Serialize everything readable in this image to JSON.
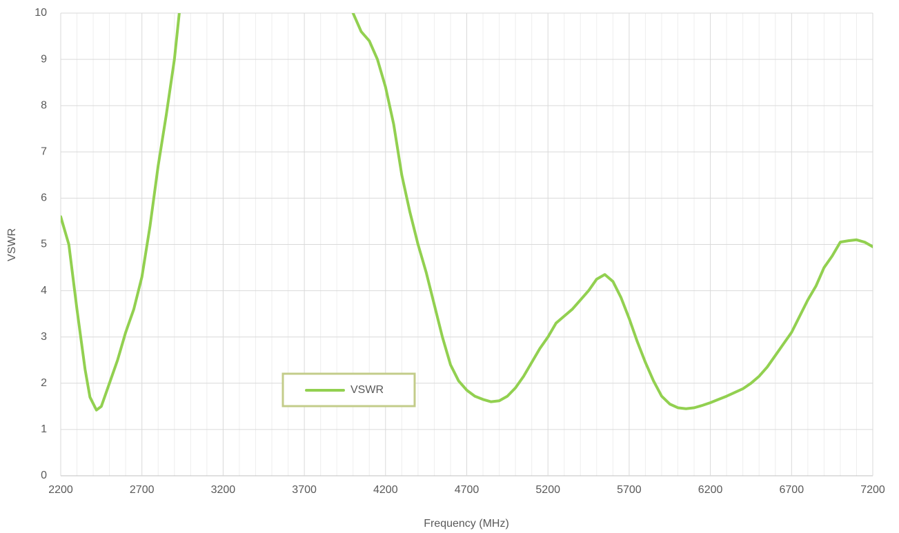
{
  "chart_data": {
    "type": "line",
    "x_label": "Frequency (MHz)",
    "y_label": "VSWR",
    "x": [
      2200,
      2250,
      2300,
      2350,
      2380,
      2420,
      2450,
      2500,
      2550,
      2600,
      2650,
      2700,
      2750,
      2800,
      2850,
      2900,
      2930,
      2950,
      3450,
      3980,
      4000,
      4050,
      4100,
      4150,
      4200,
      4250,
      4300,
      4350,
      4400,
      4450,
      4500,
      4550,
      4600,
      4650,
      4700,
      4750,
      4800,
      4850,
      4900,
      4950,
      5000,
      5050,
      5100,
      5150,
      5200,
      5250,
      5300,
      5350,
      5400,
      5450,
      5500,
      5550,
      5600,
      5650,
      5700,
      5750,
      5800,
      5850,
      5900,
      5950,
      6000,
      6050,
      6100,
      6150,
      6200,
      6250,
      6300,
      6350,
      6400,
      6450,
      6500,
      6550,
      6600,
      6650,
      6700,
      6750,
      6800,
      6850,
      6900,
      6950,
      7000,
      7050,
      7100,
      7150,
      7200
    ],
    "series": [
      {
        "name": "VSWR",
        "color": "#92d050",
        "values": [
          5.6,
          5.0,
          3.6,
          2.3,
          1.7,
          1.42,
          1.5,
          2.0,
          2.5,
          3.1,
          3.6,
          4.3,
          5.4,
          6.7,
          7.8,
          9.0,
          10.0,
          10.6,
          null,
          10.4,
          10.0,
          9.6,
          9.4,
          9.0,
          8.4,
          7.6,
          6.5,
          5.7,
          5.0,
          4.4,
          3.7,
          3.0,
          2.4,
          2.05,
          1.85,
          1.72,
          1.65,
          1.6,
          1.62,
          1.72,
          1.9,
          2.15,
          2.45,
          2.75,
          3.0,
          3.3,
          3.45,
          3.6,
          3.8,
          4.0,
          4.25,
          4.35,
          4.2,
          3.85,
          3.4,
          2.9,
          2.45,
          2.05,
          1.72,
          1.55,
          1.47,
          1.45,
          1.47,
          1.52,
          1.58,
          1.65,
          1.72,
          1.8,
          1.88,
          2.0,
          2.15,
          2.35,
          2.6,
          2.85,
          3.1,
          3.45,
          3.8,
          4.1,
          4.5,
          4.75,
          5.05,
          5.08,
          5.1,
          5.05,
          4.95
        ]
      }
    ],
    "xlim": [
      2200,
      7200
    ],
    "xticks": [
      2200,
      2700,
      3200,
      3700,
      4200,
      4700,
      5200,
      5700,
      6200,
      6700,
      7200
    ],
    "xminorticks": [
      2300,
      2400,
      2500,
      2600,
      2800,
      2900,
      3000,
      3100,
      3300,
      3400,
      3500,
      3600,
      3800,
      3900,
      4000,
      4100,
      4300,
      4400,
      4500,
      4600,
      4800,
      4900,
      5000,
      5100,
      5300,
      5400,
      5500,
      5600,
      5800,
      5900,
      6000,
      6100,
      6300,
      6400,
      6500,
      6600,
      6800,
      6900,
      7000,
      7100
    ],
    "ylim": [
      0,
      10
    ],
    "yticks": [
      0,
      1,
      2,
      3,
      4,
      5,
      6,
      7,
      8,
      9,
      10
    ],
    "grid": true
  }
}
